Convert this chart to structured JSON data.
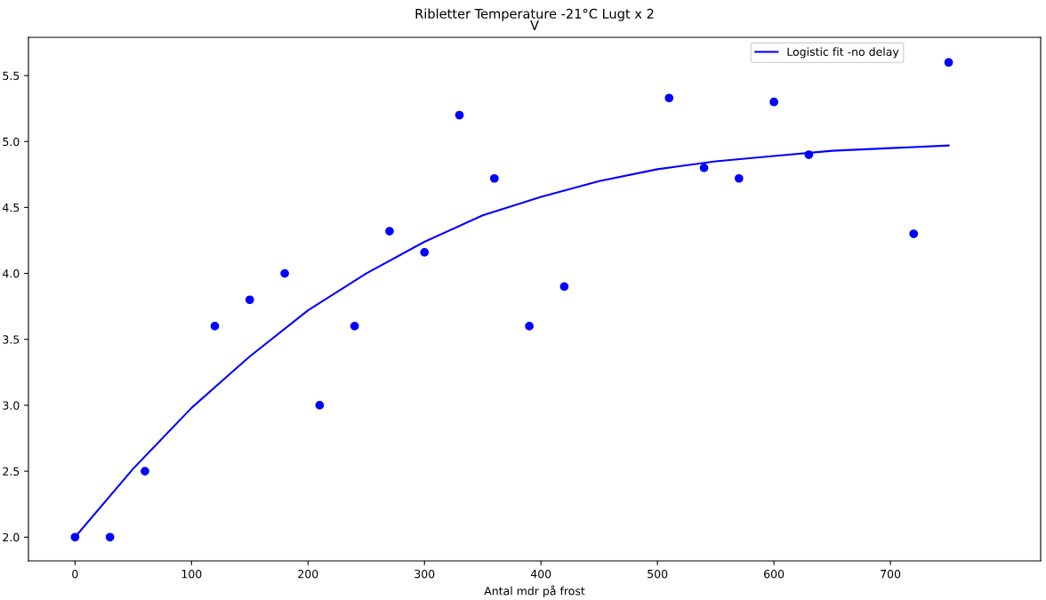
{
  "chart_data": {
    "type": "scatter",
    "title": "Ribletter Temperature -21°C Lugt x 2\nV",
    "xlabel": "Antal mdr på frost",
    "series": [
      {
        "color": "#0000ff",
        "marker": "circle",
        "x": [
          0,
          30,
          60,
          120,
          150,
          180,
          210,
          240,
          270,
          300,
          330,
          360,
          390,
          420,
          510,
          540,
          570,
          600,
          630,
          720,
          750
        ],
        "values": [
          2.0,
          2.0,
          2.5,
          3.6,
          3.8,
          4.0,
          3.0,
          3.6,
          4.32,
          4.16,
          5.2,
          4.72,
          3.6,
          3.9,
          5.33,
          4.8,
          4.72,
          5.3,
          4.9,
          4.3,
          5.6
        ]
      },
      {
        "type": "line",
        "name": "Logistic fit -no delay",
        "color": "#0000ff",
        "x": [
          0,
          50,
          100,
          150,
          200,
          250,
          300,
          350,
          400,
          450,
          500,
          550,
          600,
          650,
          700,
          750
        ],
        "values": [
          2.0,
          2.52,
          2.98,
          3.37,
          3.72,
          4.0,
          4.24,
          4.44,
          4.58,
          4.7,
          4.79,
          4.85,
          4.89,
          4.93,
          4.95,
          4.97
        ]
      }
    ],
    "xlim": [
      -40,
      829
    ],
    "ylim": [
      1.82,
      5.79
    ],
    "xticks": [
      0,
      100,
      200,
      300,
      400,
      500,
      600,
      700
    ],
    "yticks": [
      {
        "value": 2,
        "label": "2.0"
      },
      2.5,
      {
        "value": 3,
        "label": "3.0"
      },
      3.5,
      {
        "value": 4,
        "label": "4.0"
      },
      4.5,
      {
        "value": 5,
        "label": "5.0"
      },
      5.5
    ],
    "grid": false,
    "legend": "top right"
  }
}
